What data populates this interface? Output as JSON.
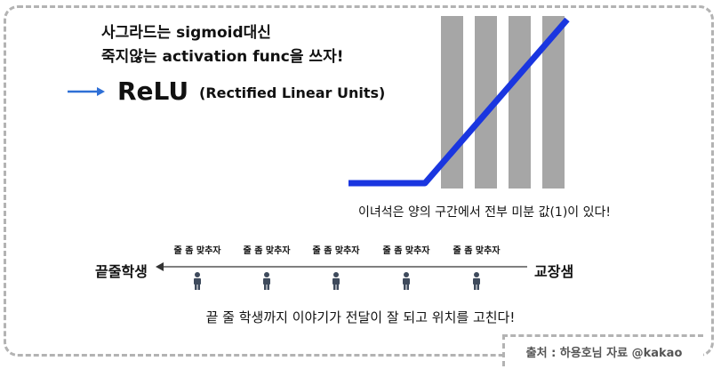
{
  "intro": {
    "line1": "사그라드는 sigmoid대신",
    "line2": "죽지않는 activation func을 쓰자!"
  },
  "relu": {
    "title": "ReLU",
    "subtitle": "(Rectified Linear Units)"
  },
  "graph": {
    "caption": "이녀석은 양의 구간에서 전부 미분 값(1)이 있다!"
  },
  "queue": {
    "left_label": "끝줄학생",
    "right_label": "교장샘",
    "people": [
      {
        "label": "줄 좀 맞추자"
      },
      {
        "label": "줄 좀 맞추자"
      },
      {
        "label": "줄 좀 맞추자"
      },
      {
        "label": "줄 좀 맞추자"
      },
      {
        "label": "줄 좀 맞추자"
      }
    ],
    "caption": "끝 줄 학생까지 이야기가 전달이 잘 되고 위치를 고친다!"
  },
  "source": "출처 : 하용호님 자료 @kakao",
  "colors": {
    "accent_blue": "#1a36e0",
    "arrow_blue": "#2e6fd6",
    "bar_gray": "#a6a6a6",
    "border_gray": "#b3b3b3"
  },
  "icons": {
    "arrow": "right-arrow-icon",
    "person": "person-icon"
  }
}
